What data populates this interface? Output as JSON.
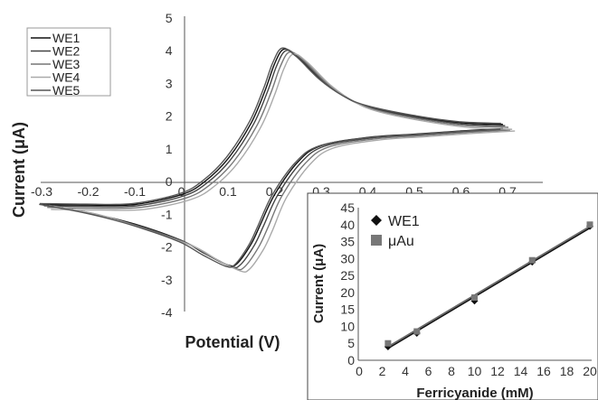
{
  "chart_data": [
    {
      "type": "line",
      "title": "",
      "xlabel": "Potential (V)",
      "ylabel": "Current (μA)",
      "xlim": [
        -0.3,
        0.7
      ],
      "ylim": [
        -4,
        5
      ],
      "xticks": [
        "-0.3",
        "-0.2",
        "-0.1",
        "0",
        "0.1",
        "0.2",
        "0.3",
        "0.4",
        "0.5",
        "0.6",
        "0.7"
      ],
      "yticks": [
        "5",
        "4",
        "3",
        "2",
        "1",
        "0",
        "-1",
        "-2",
        "-3",
        "-4"
      ],
      "legend_position": "top-left",
      "grid": false,
      "series": [
        {
          "name": "WE1",
          "color": "#111111"
        },
        {
          "name": "WE2",
          "color": "#444444"
        },
        {
          "name": "WE3",
          "color": "#777777"
        },
        {
          "name": "WE4",
          "color": "#aaaaaa"
        },
        {
          "name": "WE5",
          "color": "#555555"
        }
      ],
      "anodic_sweep": {
        "x": [
          -0.3,
          -0.2,
          -0.1,
          0.0,
          0.05,
          0.1,
          0.15,
          0.18,
          0.2,
          0.22,
          0.25,
          0.3,
          0.35,
          0.4,
          0.5,
          0.6,
          0.69
        ],
        "y": [
          -0.7,
          -0.72,
          -0.7,
          -0.4,
          0.0,
          0.7,
          1.8,
          2.8,
          3.6,
          4.05,
          3.8,
          3.1,
          2.6,
          2.3,
          2.0,
          1.8,
          1.75
        ]
      },
      "cathodic_sweep": {
        "x": [
          0.69,
          0.6,
          0.5,
          0.4,
          0.3,
          0.25,
          0.2,
          0.17,
          0.15,
          0.12,
          0.1,
          0.05,
          0.0,
          -0.1,
          -0.2,
          -0.3
        ],
        "y": [
          1.62,
          1.55,
          1.45,
          1.35,
          1.1,
          0.6,
          -0.4,
          -1.3,
          -1.9,
          -2.5,
          -2.55,
          -2.2,
          -1.8,
          -1.3,
          -0.95,
          -0.68
        ]
      },
      "offsets": [
        {
          "dx": 0.0,
          "dy": 0.0
        },
        {
          "dx": 0.005,
          "dy": -0.04
        },
        {
          "dx": 0.012,
          "dy": -0.09
        },
        {
          "dx": 0.02,
          "dy": -0.15
        },
        {
          "dx": -0.004,
          "dy": 0.03
        }
      ]
    },
    {
      "type": "scatter",
      "title": "",
      "xlabel": "Ferricyanide (mM)",
      "ylabel": "Current (μA)",
      "xlim": [
        0,
        20
      ],
      "ylim": [
        0,
        45
      ],
      "xticks": [
        "0",
        "2",
        "4",
        "6",
        "8",
        "10",
        "12",
        "14",
        "16",
        "18",
        "20"
      ],
      "yticks": [
        "45",
        "40",
        "35",
        "30",
        "25",
        "20",
        "15",
        "10",
        "5",
        "0"
      ],
      "legend_position": "top-left",
      "series": [
        {
          "name": "WE1",
          "marker": "diamond",
          "color": "#111111",
          "x": [
            2.5,
            5,
            10,
            15,
            20
          ],
          "y": [
            4,
            8,
            17.5,
            29,
            39.5
          ]
        },
        {
          "name": "μAu",
          "marker": "square",
          "color": "#777777",
          "x": [
            2.5,
            5,
            10,
            15,
            20
          ],
          "y": [
            5,
            8.5,
            18.5,
            29.5,
            40
          ]
        }
      ],
      "fit_lines": [
        {
          "x": [
            2.5,
            20
          ],
          "y": [
            3.5,
            39.0
          ],
          "color": "#111111"
        },
        {
          "x": [
            2.5,
            20
          ],
          "y": [
            4.0,
            39.5
          ],
          "color": "#666666"
        }
      ]
    }
  ]
}
